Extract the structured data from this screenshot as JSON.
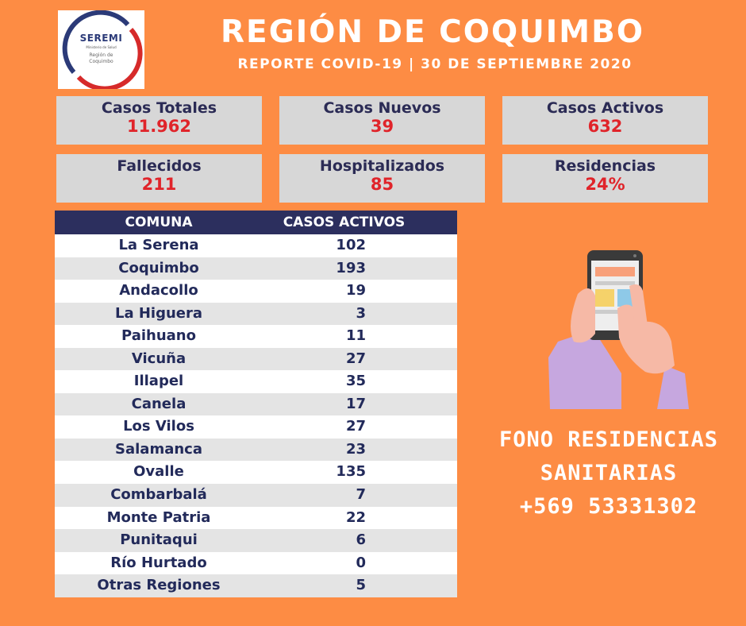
{
  "logo": {
    "brand": "SEREMI",
    "ministry": "Ministerio de Salud",
    "region_line1": "Región de",
    "region_line2": "Coquimbo"
  },
  "header": {
    "title": "REGIÓN DE COQUIMBO",
    "subtitle": "REPORTE COVID-19 | 30 DE SEPTIEMBRE 2020"
  },
  "stats": [
    {
      "label": "Casos Totales",
      "value": "11.962"
    },
    {
      "label": "Casos Nuevos",
      "value": "39"
    },
    {
      "label": "Casos Activos",
      "value": "632"
    },
    {
      "label": "Fallecidos",
      "value": "211"
    },
    {
      "label": "Hospitalizados",
      "value": "85"
    },
    {
      "label": "Residencias",
      "value": "24%"
    }
  ],
  "table": {
    "headers": [
      "COMUNA",
      "CASOS ACTIVOS"
    ],
    "rows": [
      [
        "La Serena",
        "102"
      ],
      [
        "Coquimbo",
        "193"
      ],
      [
        "Andacollo",
        "19"
      ],
      [
        "La Higuera",
        "3"
      ],
      [
        "Paihuano",
        "11"
      ],
      [
        "Vicuña",
        "27"
      ],
      [
        "Illapel",
        "35"
      ],
      [
        "Canela",
        "17"
      ],
      [
        "Los Vilos",
        "27"
      ],
      [
        "Salamanca",
        "23"
      ],
      [
        "Ovalle",
        "135"
      ],
      [
        "Combarbalá",
        "7"
      ],
      [
        "Monte Patria",
        "22"
      ],
      [
        "Punitaqui",
        "6"
      ],
      [
        "Río Hurtado",
        "0"
      ],
      [
        "Otras Regiones",
        "5"
      ]
    ]
  },
  "contact": {
    "line1": "FONO RESIDENCIAS",
    "line2": "SANITARIAS",
    "line3": "+569 53331302"
  },
  "icons": {
    "phone_illustration": "hand-holding-phone-icon"
  },
  "colors": {
    "background": "#fd8c44",
    "card": "#d7d7d7",
    "value_red": "#e0242a",
    "header_navy": "#2c2f5e"
  }
}
